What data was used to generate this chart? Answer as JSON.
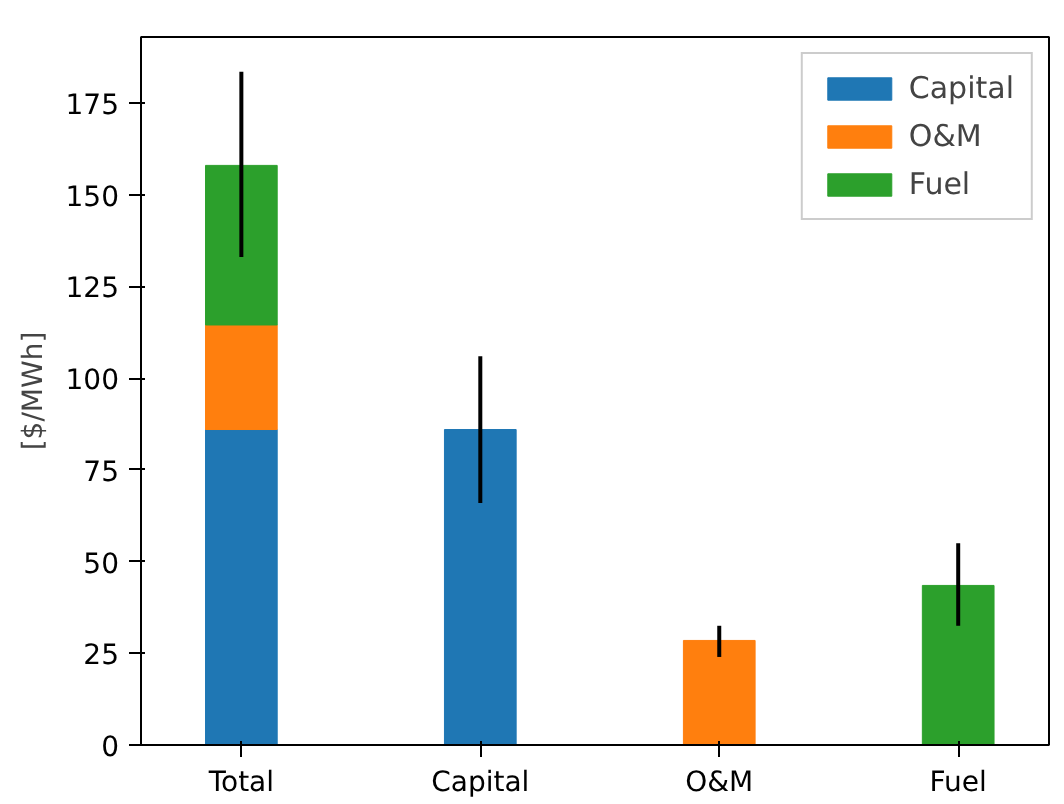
{
  "chart_data": {
    "type": "bar",
    "ylabel": "[$/MWh]",
    "categories": [
      "Total",
      "Capital",
      "O&M",
      "Fuel"
    ],
    "stacked": true,
    "series": [
      {
        "name": "Capital",
        "color": "#1f77b4",
        "values": [
          86,
          86,
          null,
          null
        ],
        "errors": [
          null,
          [
            66,
            106
          ],
          null,
          null
        ]
      },
      {
        "name": "O&M",
        "color": "#ff7f0e",
        "values": [
          28.5,
          null,
          28.5,
          null
        ],
        "errors": [
          null,
          null,
          [
            24,
            32.5
          ],
          null
        ]
      },
      {
        "name": "Fuel",
        "color": "#2ca02c",
        "values": [
          43.5,
          null,
          null,
          43.5
        ],
        "errors": [
          [
            133,
            183.5
          ],
          null,
          null,
          [
            32.5,
            55
          ]
        ]
      }
    ],
    "ylim": [
      0,
      193
    ],
    "yticks": [
      0,
      25,
      50,
      75,
      100,
      125,
      150,
      175
    ],
    "legend": "top right",
    "grid": false
  }
}
